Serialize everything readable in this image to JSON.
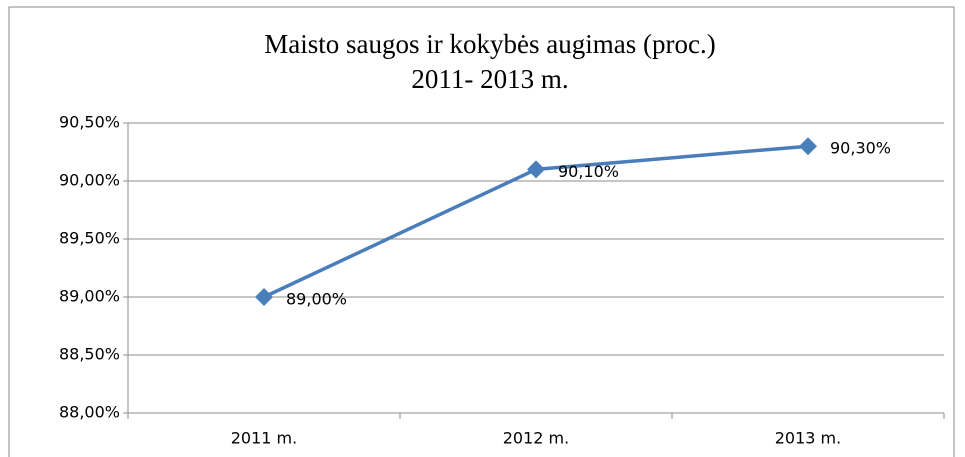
{
  "chart_data": {
    "type": "line",
    "title": "Maisto saugos ir kokybės augimas (proc.)",
    "subtitle": "2011- 2013 m.",
    "categories": [
      "2011 m.",
      "2012 m.",
      "2013 m."
    ],
    "series": [
      {
        "name": "Maisto saugos ir kokybės augimas",
        "color": "#4a7ebb",
        "values": [
          89.0,
          90.1,
          90.3
        ],
        "value_labels": [
          "89,00%",
          "90,10%",
          "90,30%"
        ]
      }
    ],
    "ylim": [
      88,
      90.5
    ],
    "yticks": [
      {
        "value": 88,
        "label": "88,00%"
      },
      {
        "value": 88.5,
        "label": "88,50%"
      },
      {
        "value": 89,
        "label": "89,00%"
      },
      {
        "value": 89.5,
        "label": "89,50%"
      },
      {
        "value": 90,
        "label": "90,00%"
      },
      {
        "value": 90.5,
        "label": "90,50%"
      }
    ],
    "grid": true
  }
}
